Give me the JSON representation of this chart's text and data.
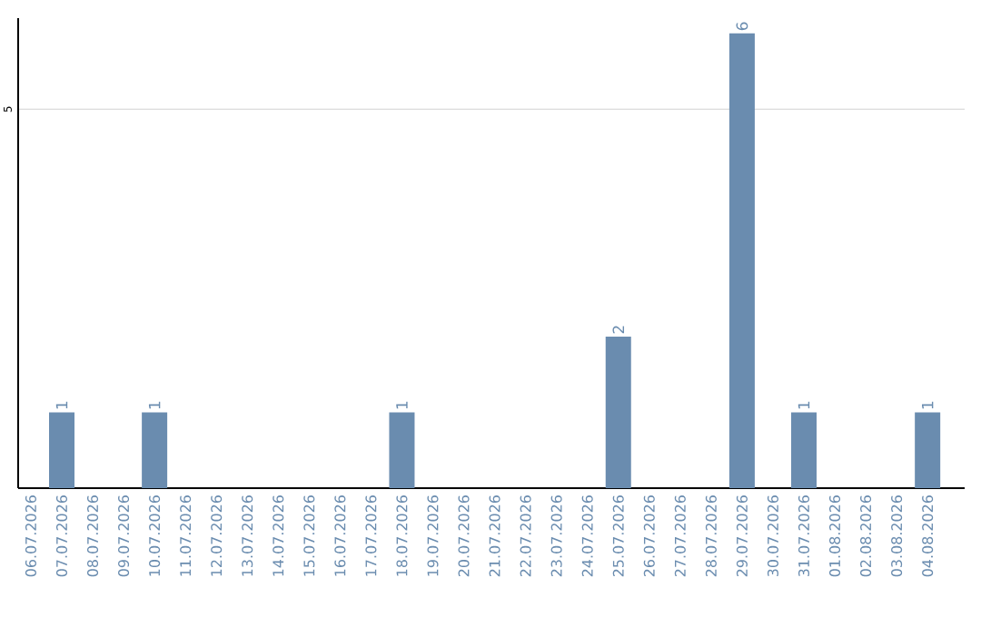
{
  "chart_data": {
    "type": "bar",
    "categories": [
      "06.07.2026",
      "07.07.2026",
      "08.07.2026",
      "09.07.2026",
      "10.07.2026",
      "11.07.2026",
      "12.07.2026",
      "13.07.2026",
      "14.07.2026",
      "15.07.2026",
      "16.07.2026",
      "17.07.2026",
      "18.07.2026",
      "19.07.2026",
      "20.07.2026",
      "21.07.2026",
      "22.07.2026",
      "23.07.2026",
      "24.07.2026",
      "25.07.2026",
      "26.07.2026",
      "27.07.2026",
      "28.07.2026",
      "29.07.2026",
      "30.07.2026",
      "31.07.2026",
      "01.08.2026",
      "02.08.2026",
      "03.08.2026",
      "04.08.2026"
    ],
    "values": [
      0,
      1,
      0,
      0,
      1,
      0,
      0,
      0,
      0,
      0,
      0,
      0,
      1,
      0,
      0,
      0,
      0,
      0,
      0,
      2,
      0,
      0,
      0,
      6,
      0,
      1,
      0,
      0,
      0,
      1
    ],
    "value_labels": [
      null,
      "1",
      null,
      null,
      "1",
      null,
      null,
      null,
      null,
      null,
      null,
      null,
      "1",
      null,
      null,
      null,
      null,
      null,
      null,
      "2",
      null,
      null,
      null,
      "6",
      null,
      "1",
      null,
      null,
      null,
      "1"
    ],
    "color": "#6a8caf",
    "ylim": [
      0,
      6.2
    ],
    "yticks": [
      5
    ],
    "grid": "y"
  }
}
